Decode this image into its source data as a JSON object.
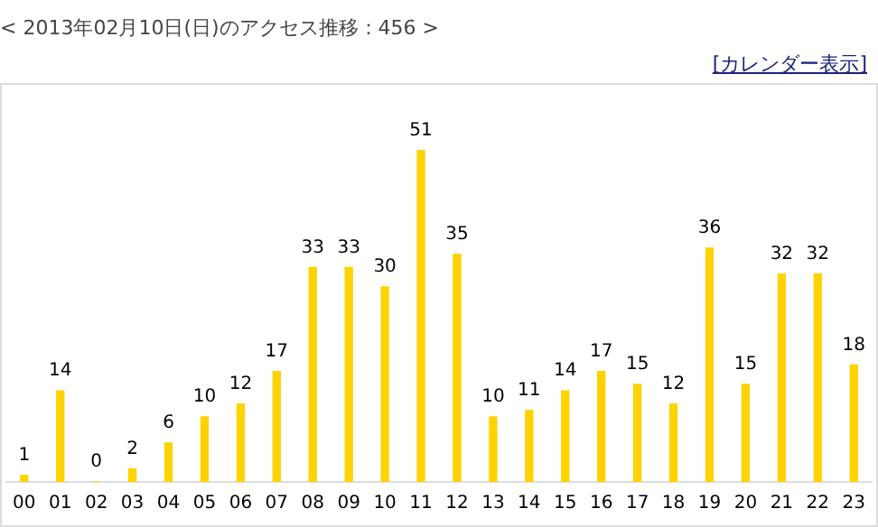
{
  "chart_data": {
    "type": "bar",
    "title": "< 2013年02月10日(日)のアクセス推移：456 >",
    "annotations": [
      "[カレンダー表示]"
    ],
    "categories": [
      "00",
      "01",
      "02",
      "03",
      "04",
      "05",
      "06",
      "07",
      "08",
      "09",
      "10",
      "11",
      "12",
      "13",
      "14",
      "15",
      "16",
      "17",
      "18",
      "19",
      "20",
      "21",
      "22",
      "23"
    ],
    "values": [
      1,
      14,
      0,
      2,
      6,
      10,
      12,
      17,
      33,
      33,
      30,
      51,
      35,
      10,
      11,
      14,
      17,
      15,
      12,
      36,
      15,
      32,
      32,
      18
    ],
    "color": "#ffd200",
    "data_labels": true,
    "grid": false,
    "legend": false
  }
}
